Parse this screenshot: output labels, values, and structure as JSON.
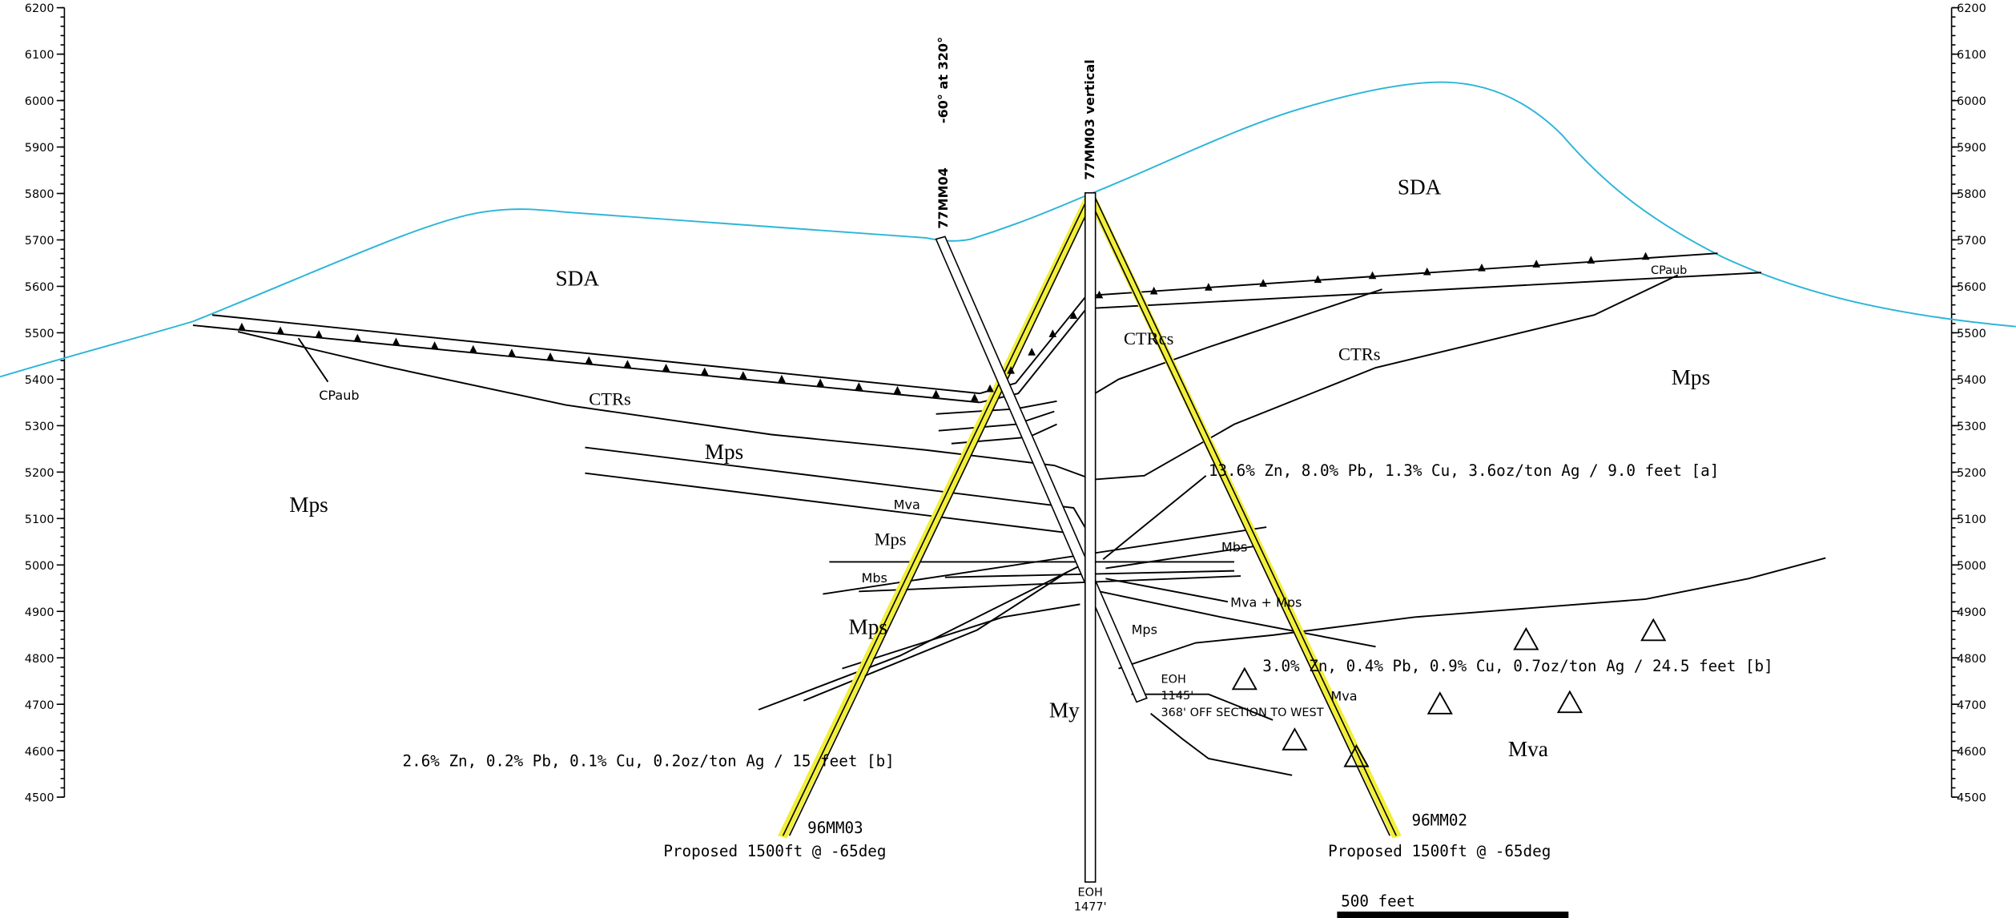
{
  "elevation_ticks": [
    4500,
    4600,
    4700,
    4800,
    4900,
    5000,
    5100,
    5200,
    5300,
    5400,
    5500,
    5600,
    5700,
    5800,
    5900,
    6000,
    6100,
    6200
  ],
  "drillholes": {
    "hole_a": {
      "name": "77MM04",
      "orientation": "-60° at 320°",
      "eoh": "EOH",
      "depth": "1145'",
      "note": "368' OFF SECTION TO WEST"
    },
    "hole_b": {
      "name": "77MM03 vertical",
      "eoh": "EOH",
      "depth": "1477'"
    },
    "proposed_a": {
      "name": "96MM03",
      "plan": "Proposed 1500ft @ -65deg"
    },
    "proposed_b": {
      "name": "96MM02",
      "plan": "Proposed 1500ft @ -65deg"
    }
  },
  "unit_labels": [
    "SDA",
    "SDA",
    "CPaub",
    "CPaub",
    "CTRs",
    "CTRcs",
    "CTRs",
    "Mps",
    "Mps",
    "Mps",
    "Mps",
    "Mps",
    "Mps",
    "Mva",
    "Mva",
    "Mva",
    "Mbs",
    "Mbs",
    "Mva + Mps",
    "My"
  ],
  "assays": [
    "13.6% Zn, 8.0% Pb, 1.3% Cu, 3.6oz/ton Ag / 9.0 feet [a]",
    "3.0% Zn, 0.4% Pb, 0.9% Cu, 0.7oz/ton Ag / 24.5 feet [b]",
    "2.6% Zn, 0.2% Pb, 0.1% Cu, 0.2oz/ton Ag / 15 feet [b]"
  ],
  "scale_bar": "500 feet"
}
